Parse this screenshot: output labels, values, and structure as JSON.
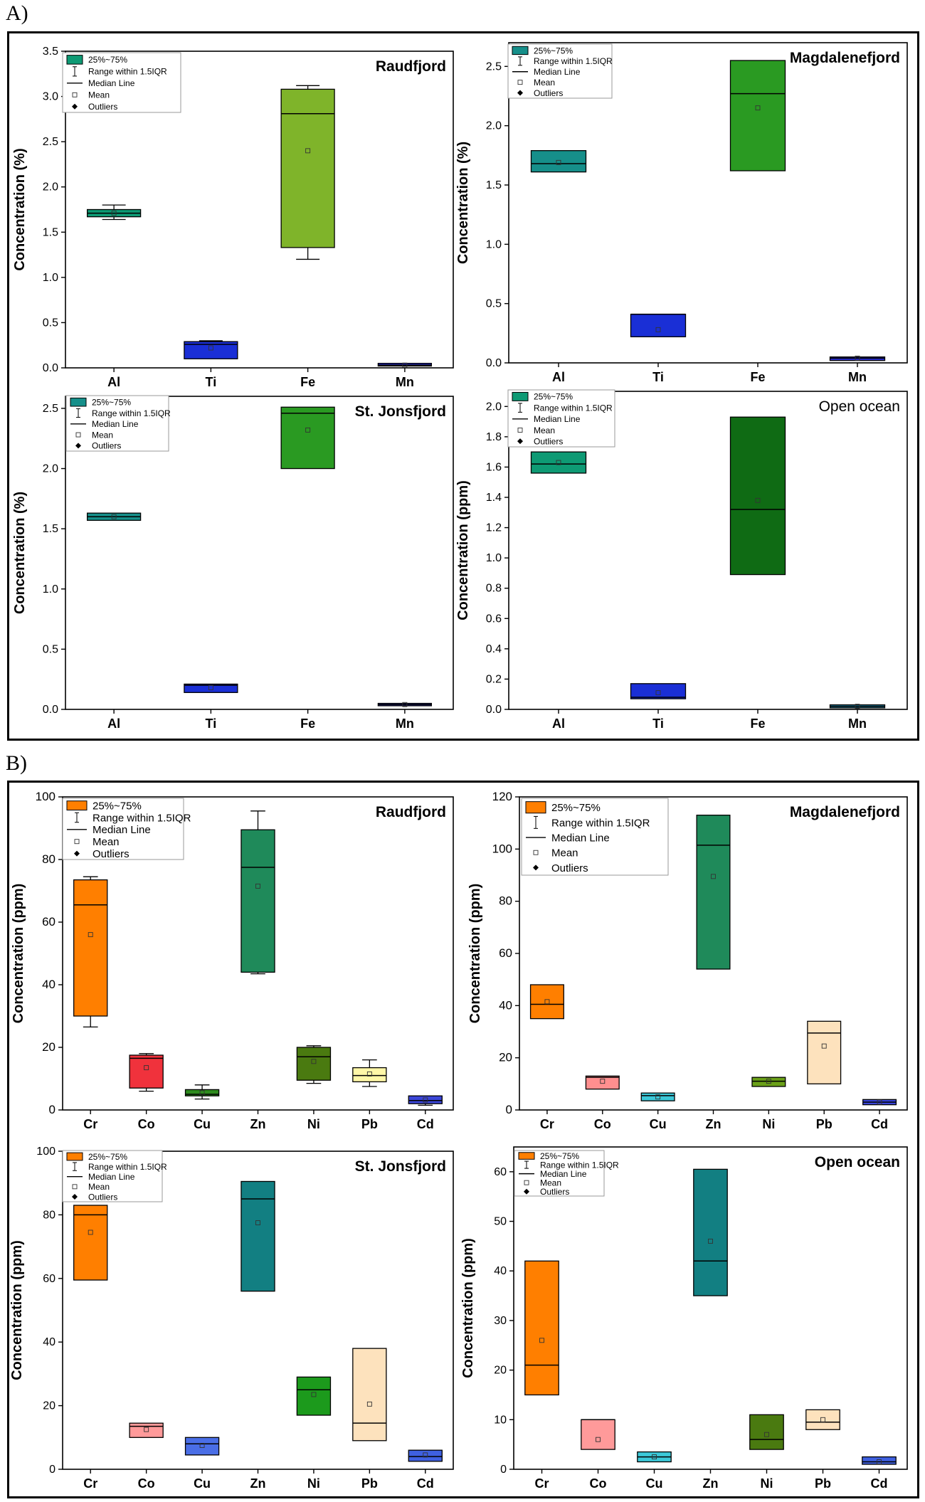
{
  "panel_labels": [
    "A)",
    "B)"
  ],
  "legend_common": {
    "box": "25%~75%",
    "whisker": "Range within 1.5IQR",
    "median": "Median Line",
    "mean": "Mean",
    "outliers": "Outliers"
  },
  "chart_data": [
    {
      "type": "box",
      "title": "Raudfjord",
      "ylabel": "Concentration (%)",
      "categories": [
        "Al",
        "Ti",
        "Fe",
        "Mn"
      ],
      "ylim": [
        0,
        3.5
      ],
      "yticks": [
        "0.0",
        "0.5",
        "1.0",
        "1.5",
        "2.0",
        "2.5",
        "3.0",
        "3.5"
      ],
      "colors": [
        "#0e9a74",
        "#1a2fd6",
        "#7fb42a",
        "#2b2fd0"
      ],
      "boxes": [
        {
          "q1": 1.67,
          "q3": 1.75,
          "median": 1.71,
          "mean": 1.71,
          "wmin": 1.64,
          "wmax": 1.8
        },
        {
          "q1": 0.1,
          "q3": 0.29,
          "median": 0.26,
          "mean": 0.22,
          "wmin": 0.1,
          "wmax": 0.3
        },
        {
          "q1": 1.33,
          "q3": 3.08,
          "median": 2.81,
          "mean": 2.4,
          "wmin": 1.2,
          "wmax": 3.12
        },
        {
          "q1": 0.02,
          "q3": 0.05,
          "median": 0.03,
          "mean": 0.03,
          "wmin": 0.02,
          "wmax": 0.05
        }
      ]
    },
    {
      "type": "box",
      "title": "Magdalenefjord",
      "ylabel": "Concentration (%)",
      "categories": [
        "Al",
        "Ti",
        "Fe",
        "Mn"
      ],
      "ylim": [
        0,
        2.7
      ],
      "yticks": [
        "0.0",
        "0.5",
        "1.0",
        "1.5",
        "2.0",
        "2.5"
      ],
      "colors": [
        "#168f8a",
        "#1a2fd6",
        "#2a9a22",
        "#2b2fd0"
      ],
      "boxes": [
        {
          "q1": 1.61,
          "q3": 1.79,
          "median": 1.68,
          "mean": 1.69,
          "wmin": 1.61,
          "wmax": 1.79
        },
        {
          "q1": 0.22,
          "q3": 0.41,
          "median": 0.41,
          "mean": 0.28,
          "wmin": 0.22,
          "wmax": 0.41
        },
        {
          "q1": 1.62,
          "q3": 2.55,
          "median": 2.27,
          "mean": 2.15,
          "wmin": 1.62,
          "wmax": 2.55
        },
        {
          "q1": 0.02,
          "q3": 0.05,
          "median": 0.04,
          "mean": 0.04,
          "wmin": 0.02,
          "wmax": 0.05
        }
      ]
    },
    {
      "type": "box",
      "title": "St. Jonsfjord",
      "ylabel": "Concentration (%)",
      "categories": [
        "Al",
        "Ti",
        "Fe",
        "Mn"
      ],
      "ylim": [
        0,
        2.6
      ],
      "yticks": [
        "0.0",
        "0.5",
        "1.0",
        "1.5",
        "2.0",
        "2.5"
      ],
      "colors": [
        "#168f8a",
        "#1a2fd6",
        "#2a9a22",
        "#2b2fd0"
      ],
      "boxes": [
        {
          "q1": 1.57,
          "q3": 1.63,
          "median": 1.6,
          "mean": 1.6,
          "wmin": 1.57,
          "wmax": 1.63
        },
        {
          "q1": 0.14,
          "q3": 0.21,
          "median": 0.2,
          "mean": 0.18,
          "wmin": 0.14,
          "wmax": 0.21
        },
        {
          "q1": 2.0,
          "q3": 2.51,
          "median": 2.46,
          "mean": 2.32,
          "wmin": 2.0,
          "wmax": 2.51
        },
        {
          "q1": 0.03,
          "q3": 0.05,
          "median": 0.04,
          "mean": 0.04,
          "wmin": 0.03,
          "wmax": 0.05
        }
      ]
    },
    {
      "type": "box",
      "title": "Open ocean",
      "ylabel": "Concentration (ppm)",
      "categories": [
        "Al",
        "Ti",
        "Fe",
        "Mn"
      ],
      "ylim": [
        0,
        2.1
      ],
      "yticks": [
        "0.0",
        "0.2",
        "0.4",
        "0.6",
        "0.8",
        "1.0",
        "1.2",
        "1.4",
        "1.6",
        "1.8",
        "2.0"
      ],
      "colors": [
        "#0e9a74",
        "#1a2fd6",
        "#0f6b14",
        "#1f86a8"
      ],
      "boxes": [
        {
          "q1": 1.56,
          "q3": 1.7,
          "median": 1.62,
          "mean": 1.63,
          "wmin": 1.56,
          "wmax": 1.7
        },
        {
          "q1": 0.07,
          "q3": 0.17,
          "median": 0.08,
          "mean": 0.11,
          "wmin": 0.07,
          "wmax": 0.17
        },
        {
          "q1": 0.89,
          "q3": 1.93,
          "median": 1.32,
          "mean": 1.38,
          "wmin": 0.89,
          "wmax": 1.93
        },
        {
          "q1": 0.01,
          "q3": 0.03,
          "median": 0.02,
          "mean": 0.02,
          "wmin": 0.01,
          "wmax": 0.03
        }
      ]
    },
    {
      "type": "box",
      "title": "Raudfjord",
      "ylabel": "Concentration (ppm)",
      "categories": [
        "Cr",
        "Co",
        "Cu",
        "Zn",
        "Ni",
        "Pb",
        "Cd"
      ],
      "ylim": [
        0,
        100
      ],
      "yticks": [
        "0",
        "20",
        "40",
        "60",
        "80",
        "100"
      ],
      "colors": [
        "#ff7f00",
        "#f0323c",
        "#2e8b1e",
        "#1f8a5a",
        "#4a7a10",
        "#fff7a8",
        "#3b46d8"
      ],
      "boxes": [
        {
          "q1": 30,
          "q3": 73.5,
          "median": 65.5,
          "mean": 56,
          "wmin": 26.5,
          "wmax": 74.5
        },
        {
          "q1": 7,
          "q3": 17.5,
          "median": 16.5,
          "mean": 13.5,
          "wmin": 6,
          "wmax": 18
        },
        {
          "q1": 4.5,
          "q3": 6.5,
          "median": 5,
          "mean": 5.5,
          "wmin": 3.5,
          "wmax": 8
        },
        {
          "q1": 44,
          "q3": 89.5,
          "median": 77.5,
          "mean": 71.5,
          "wmin": 43.5,
          "wmax": 95.5
        },
        {
          "q1": 9.5,
          "q3": 20,
          "median": 17,
          "mean": 15.5,
          "wmin": 8.5,
          "wmax": 20.5
        },
        {
          "q1": 9,
          "q3": 13.5,
          "median": 11,
          "mean": 11.5,
          "wmin": 7.5,
          "wmax": 16
        },
        {
          "q1": 2,
          "q3": 4.5,
          "median": 3,
          "mean": 3.2,
          "wmin": 1.5,
          "wmax": 4.5
        }
      ]
    },
    {
      "type": "box",
      "title": "Magdalenefjord",
      "ylabel": "Concentration (ppm)",
      "categories": [
        "Cr",
        "Co",
        "Cu",
        "Zn",
        "Ni",
        "Pb",
        "Cd"
      ],
      "ylim": [
        0,
        120
      ],
      "yticks": [
        "0",
        "20",
        "40",
        "60",
        "80",
        "100",
        "120"
      ],
      "colors": [
        "#ff7f00",
        "#ff8f8f",
        "#3cc8d8",
        "#1f8a5a",
        "#6aa018",
        "#fde2bd",
        "#3b46d8"
      ],
      "boxes": [
        {
          "q1": 35,
          "q3": 48,
          "median": 40.5,
          "mean": 41.5,
          "wmin": 35,
          "wmax": 48
        },
        {
          "q1": 8,
          "q3": 13,
          "median": 12.5,
          "mean": 11,
          "wmin": 8,
          "wmax": 13
        },
        {
          "q1": 3.5,
          "q3": 6.5,
          "median": 5.5,
          "mean": 5,
          "wmin": 3.5,
          "wmax": 6.5
        },
        {
          "q1": 54,
          "q3": 113,
          "median": 101.5,
          "mean": 89.5,
          "wmin": 54,
          "wmax": 113
        },
        {
          "q1": 9,
          "q3": 12.5,
          "median": 11,
          "mean": 11,
          "wmin": 9,
          "wmax": 12.5
        },
        {
          "q1": 10,
          "q3": 34,
          "median": 29.5,
          "mean": 24.5,
          "wmin": 10,
          "wmax": 34
        },
        {
          "q1": 2,
          "q3": 4,
          "median": 3,
          "mean": 3,
          "wmin": 2,
          "wmax": 4
        }
      ]
    },
    {
      "type": "box",
      "title": "St. Jonsfjord",
      "ylabel": "Concentration (ppm)",
      "categories": [
        "Cr",
        "Co",
        "Cu",
        "Zn",
        "Ni",
        "Pb",
        "Cd"
      ],
      "ylim": [
        0,
        100
      ],
      "yticks": [
        "0",
        "20",
        "40",
        "60",
        "80",
        "100"
      ],
      "colors": [
        "#ff7f00",
        "#ff9a9a",
        "#4a6ee6",
        "#127f82",
        "#1c9a1c",
        "#fde2bd",
        "#3f60e0"
      ],
      "boxes": [
        {
          "q1": 59.5,
          "q3": 83,
          "median": 80,
          "mean": 74.5,
          "wmin": 59.5,
          "wmax": 83
        },
        {
          "q1": 10,
          "q3": 14.5,
          "median": 13.5,
          "mean": 12.5,
          "wmin": 10,
          "wmax": 14.5
        },
        {
          "q1": 4.5,
          "q3": 10,
          "median": 8,
          "mean": 7.5,
          "wmin": 4.5,
          "wmax": 10
        },
        {
          "q1": 56,
          "q3": 90.5,
          "median": 85,
          "mean": 77.5,
          "wmin": 56,
          "wmax": 90.5
        },
        {
          "q1": 17,
          "q3": 29,
          "median": 25,
          "mean": 23.5,
          "wmin": 17,
          "wmax": 29
        },
        {
          "q1": 9,
          "q3": 38,
          "median": 14.5,
          "mean": 20.5,
          "wmin": 9,
          "wmax": 38
        },
        {
          "q1": 2.5,
          "q3": 6,
          "median": 4,
          "mean": 4.5,
          "wmin": 2.5,
          "wmax": 6
        }
      ]
    },
    {
      "type": "box",
      "title": "Open ocean",
      "ylabel": "Concentration (ppm)",
      "categories": [
        "Cr",
        "Co",
        "Cu",
        "Zn",
        "Ni",
        "Pb",
        "Cd"
      ],
      "ylim": [
        0,
        65
      ],
      "yticks": [
        "0",
        "10",
        "20",
        "30",
        "40",
        "50",
        "60"
      ],
      "colors": [
        "#ff7f00",
        "#ff9a9a",
        "#3cc8d8",
        "#127f82",
        "#4a7a10",
        "#fde2bd",
        "#3f60e0"
      ],
      "boxes": [
        {
          "q1": 15,
          "q3": 42,
          "median": 21,
          "mean": 26,
          "wmin": 15,
          "wmax": 42
        },
        {
          "q1": 4,
          "q3": 10,
          "median": 10,
          "mean": 6,
          "wmin": 4,
          "wmax": 10
        },
        {
          "q1": 1.5,
          "q3": 3.5,
          "median": 2.5,
          "mean": 2.5,
          "wmin": 1.5,
          "wmax": 3.5
        },
        {
          "q1": 35,
          "q3": 60.5,
          "median": 42,
          "mean": 46,
          "wmin": 35,
          "wmax": 60.5
        },
        {
          "q1": 4,
          "q3": 11,
          "median": 6,
          "mean": 7,
          "wmin": 4,
          "wmax": 11
        },
        {
          "q1": 8,
          "q3": 12,
          "median": 9.5,
          "mean": 10,
          "wmin": 8,
          "wmax": 12
        },
        {
          "q1": 1,
          "q3": 2.5,
          "median": 1.5,
          "mean": 1.5,
          "wmin": 1,
          "wmax": 2.5
        }
      ]
    }
  ]
}
